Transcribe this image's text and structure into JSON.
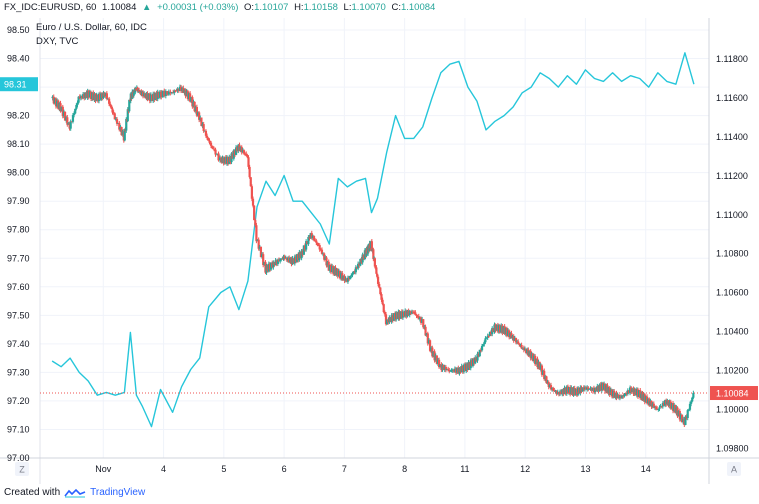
{
  "header": {
    "symbol": "FX_IDC:EURUSD, 60",
    "last": "1.10084",
    "change_arrow": "▲",
    "change": "+0.00031 (+0.03%)",
    "open_label": "O:",
    "open": "1.10107",
    "high_label": "H:",
    "high": "1.10158",
    "low_label": "L:",
    "low": "1.10070",
    "close_label": "C:",
    "close": "1.10084",
    "value_color": "#26a69a"
  },
  "legend": {
    "main_series": "Euro / U.S. Dollar, 60, IDC",
    "compare_series": "DXY, TVC"
  },
  "footer": {
    "created_with": "Created with",
    "brand": "TradingView"
  },
  "chart_data": {
    "type": "line",
    "x_ticks": [
      "Nov",
      "4",
      "5",
      "6",
      "7",
      "8",
      "11",
      "12",
      "13",
      "14"
    ],
    "left_axis": {
      "label": "DXY",
      "ticks": [
        "98.50",
        "98.40",
        "98.30",
        "98.20",
        "98.10",
        "98.00",
        "97.90",
        "97.80",
        "97.70",
        "97.60",
        "97.50",
        "97.40",
        "97.30",
        "97.20",
        "97.10",
        "97.00"
      ],
      "range": [
        97.0,
        98.5
      ],
      "current_label": "98.31",
      "current_value": 98.31,
      "current_color": "#26c6da"
    },
    "right_axis": {
      "label": "EURUSD",
      "ticks": [
        "1.11800",
        "1.11600",
        "1.11400",
        "1.11200",
        "1.11000",
        "1.10800",
        "1.10600",
        "1.10400",
        "1.10200",
        "1.10000",
        "1.09800"
      ],
      "range": [
        1.0975,
        1.1195
      ],
      "current_label": "1.10084",
      "current_value": 1.10084,
      "current_color": "#ef5350"
    },
    "axis_corner_left": "Z",
    "axis_corner_right": "A",
    "series": [
      {
        "name": "DXY, TVC",
        "kind": "line",
        "axis": "left",
        "color": "#26c6da",
        "x": [
          -0.3,
          -0.15,
          0,
          0.15,
          0.3,
          0.45,
          0.6,
          0.75,
          0.9,
          1.0,
          1.1,
          1.2,
          1.35,
          1.5,
          1.7,
          1.85,
          2.0,
          2.15,
          2.3,
          2.5,
          2.65,
          2.8,
          2.95,
          3.1,
          3.25,
          3.4,
          3.55,
          3.7,
          3.85,
          4.0,
          4.15,
          4.3,
          4.45,
          4.6,
          4.75,
          4.9,
          5.0,
          5.1,
          5.25,
          5.4,
          5.55,
          5.7,
          5.85,
          6.0,
          6.15,
          6.3,
          6.45,
          6.6,
          6.75,
          6.9,
          7.05,
          7.2,
          7.35,
          7.5,
          7.65,
          7.8,
          7.95,
          8.1,
          8.25,
          8.4,
          8.55,
          8.7,
          8.85,
          9.0,
          9.15,
          9.3,
          9.45,
          9.6,
          9.75,
          9.9,
          10.05,
          10.2,
          10.35
        ],
        "y": [
          97.34,
          97.32,
          97.35,
          97.3,
          97.27,
          97.22,
          97.23,
          97.22,
          97.23,
          97.44,
          97.22,
          97.18,
          97.11,
          97.24,
          97.16,
          97.25,
          97.31,
          97.35,
          97.53,
          97.58,
          97.6,
          97.52,
          97.62,
          97.88,
          97.97,
          97.92,
          97.99,
          97.9,
          97.9,
          97.86,
          97.82,
          97.75,
          97.98,
          97.95,
          97.97,
          97.98,
          97.86,
          97.91,
          98.07,
          98.2,
          98.12,
          98.12,
          98.16,
          98.26,
          98.35,
          98.38,
          98.39,
          98.3,
          98.25,
          98.15,
          98.18,
          98.2,
          98.23,
          98.28,
          98.3,
          98.35,
          98.33,
          98.3,
          98.34,
          98.31,
          98.36,
          98.33,
          98.32,
          98.35,
          98.32,
          98.34,
          98.33,
          98.3,
          98.35,
          98.32,
          98.31,
          98.42,
          98.31
        ]
      },
      {
        "name": "EURUSD, 60, IDC",
        "kind": "candles",
        "axis": "right",
        "up_color": "#26a69a",
        "down_color": "#ef5350",
        "x": [
          -0.3,
          -0.15,
          0,
          0.15,
          0.3,
          0.45,
          0.6,
          0.75,
          0.9,
          1.0,
          1.1,
          1.2,
          1.35,
          1.5,
          1.7,
          1.85,
          2.0,
          2.15,
          2.3,
          2.5,
          2.65,
          2.8,
          2.95,
          3.1,
          3.25,
          3.4,
          3.55,
          3.7,
          3.85,
          4.0,
          4.15,
          4.3,
          4.45,
          4.6,
          4.75,
          4.9,
          5.0,
          5.1,
          5.25,
          5.4,
          5.55,
          5.7,
          5.85,
          6.0,
          6.15,
          6.3,
          6.45,
          6.6,
          6.75,
          6.9,
          7.05,
          7.2,
          7.35,
          7.5,
          7.65,
          7.8,
          7.95,
          8.1,
          8.25,
          8.4,
          8.55,
          8.7,
          8.85,
          9.0,
          9.15,
          9.3,
          9.45,
          9.6,
          9.75,
          9.9,
          10.05,
          10.2,
          10.35
        ],
        "y": [
          1.116,
          1.1155,
          1.1145,
          1.116,
          1.1162,
          1.116,
          1.1162,
          1.115,
          1.114,
          1.116,
          1.1165,
          1.1162,
          1.116,
          1.1162,
          1.1163,
          1.1165,
          1.116,
          1.115,
          1.1138,
          1.1128,
          1.1128,
          1.1135,
          1.113,
          1.1088,
          1.1072,
          1.1075,
          1.1078,
          1.1076,
          1.108,
          1.109,
          1.1083,
          1.1073,
          1.107,
          1.1066,
          1.1072,
          1.108,
          1.1085,
          1.1068,
          1.1045,
          1.1048,
          1.1049,
          1.105,
          1.1045,
          1.103,
          1.1022,
          1.102,
          1.102,
          1.1022,
          1.1026,
          1.1036,
          1.1042,
          1.1041,
          1.1037,
          1.1032,
          1.1028,
          1.1022,
          1.1012,
          1.1008,
          1.101,
          1.1009,
          1.1011,
          1.101,
          1.1012,
          1.1008,
          1.1006,
          1.101,
          1.1008,
          1.1004,
          1.1,
          1.1004,
          1.1,
          1.0993,
          1.1008
        ]
      }
    ]
  }
}
